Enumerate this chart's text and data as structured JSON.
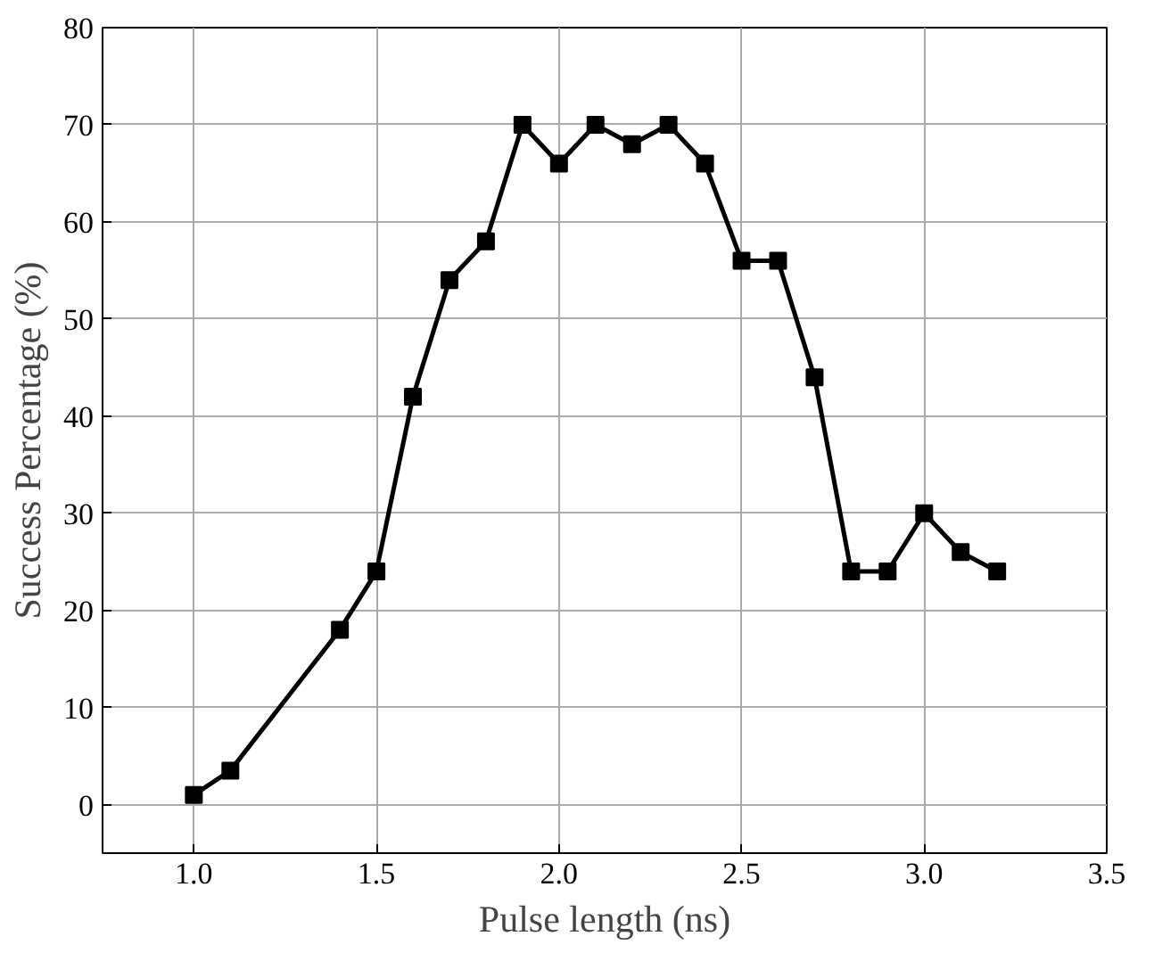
{
  "chart_data": {
    "type": "line",
    "xlabel": "Pulse length (ns)",
    "ylabel": "Success Percentage (%)",
    "x": [
      1.0,
      1.1,
      1.4,
      1.5,
      1.6,
      1.7,
      1.8,
      1.9,
      2.0,
      2.1,
      2.2,
      2.3,
      2.4,
      2.5,
      2.6,
      2.7,
      2.8,
      2.9,
      3.0,
      3.1,
      3.2
    ],
    "series": [
      {
        "color": "#000000",
        "values": [
          1,
          3.5,
          18,
          24,
          42,
          54,
          58,
          70,
          66,
          70,
          68,
          70,
          66,
          56,
          56,
          44,
          24,
          24,
          30,
          26,
          24
        ]
      }
    ],
    "xlim": [
      0.75,
      3.5
    ],
    "ylim": [
      -5,
      80
    ],
    "xticks": [
      {
        "value": 1.0,
        "label": "1.0"
      },
      {
        "value": 1.5,
        "label": "1.5"
      },
      {
        "value": 2.0,
        "label": "2.0"
      },
      {
        "value": 2.5,
        "label": "2.5"
      },
      {
        "value": 3.0,
        "label": "3.0"
      },
      {
        "value": 3.5,
        "label": "3.5"
      }
    ],
    "yticks": [
      0,
      10,
      20,
      30,
      40,
      50,
      60,
      70,
      80
    ],
    "grid": true,
    "marker": "square",
    "line_style": "solid"
  }
}
